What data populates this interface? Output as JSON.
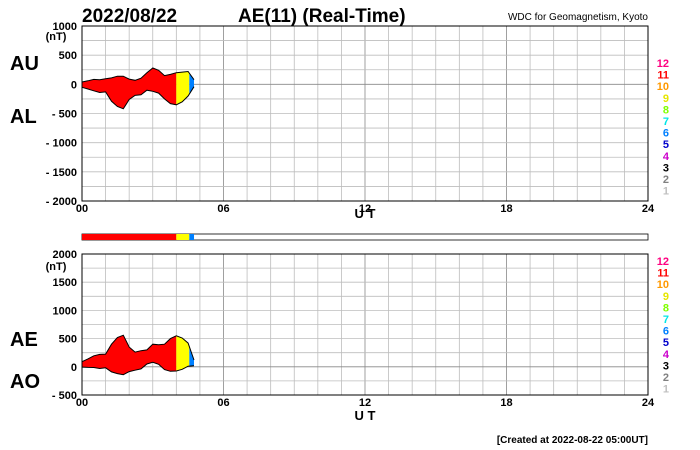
{
  "header": {
    "date": "2022/08/22",
    "title": "AE(11) (Real-Time)",
    "source": "WDC for Geomagnetism, Kyoto"
  },
  "footer": {
    "created": "[Created at 2022-08-22 05:00UT]"
  },
  "station_scale": {
    "labels": [
      "12",
      "11",
      "10",
      "9",
      "8",
      "7",
      "6",
      "5",
      "4",
      "3",
      "2",
      "1"
    ],
    "colors": [
      "#ff0080",
      "#ff0000",
      "#ff9900",
      "#e6e600",
      "#80ff00",
      "#00e6e6",
      "#0080ff",
      "#0000cc",
      "#cc00cc",
      "#000000",
      "#808080",
      "#c0c0c0"
    ]
  },
  "station_bar": {
    "segments": [
      {
        "from": 0.0,
        "to": 4.0,
        "color": "#ff0000"
      },
      {
        "from": 4.0,
        "to": 4.55,
        "color": "#ffff00"
      },
      {
        "from": 4.55,
        "to": 4.75,
        "color": "#0080ff"
      }
    ],
    "extent": [
      0,
      24
    ]
  },
  "chart_data": [
    {
      "type": "area",
      "panel": "au-al",
      "series_labels": [
        "AU",
        "AL"
      ],
      "unit_label": "(nT)",
      "xlabel": "U T",
      "xlim": [
        0,
        24
      ],
      "x_ticks": [
        "00",
        "06",
        "12",
        "18",
        "24"
      ],
      "ylim": [
        -2000,
        1000
      ],
      "y_ticks": [
        "1000",
        "500",
        "0",
        "- 500",
        "- 1000",
        "- 1500",
        "- 2000"
      ],
      "grid": true,
      "x": [
        0.0,
        0.25,
        0.5,
        0.75,
        1.0,
        1.25,
        1.5,
        1.75,
        2.0,
        2.25,
        2.5,
        2.75,
        3.0,
        3.25,
        3.5,
        3.75,
        4.0,
        4.25,
        4.5,
        4.75
      ],
      "AU": [
        40,
        60,
        85,
        80,
        95,
        110,
        140,
        140,
        90,
        70,
        105,
        200,
        280,
        240,
        150,
        170,
        200,
        210,
        220,
        80
      ],
      "AL": [
        -50,
        -80,
        -110,
        -140,
        -130,
        -290,
        -380,
        -420,
        -260,
        -190,
        -180,
        -100,
        -120,
        -150,
        -250,
        -330,
        -350,
        -300,
        -200,
        -40
      ],
      "station_colors": [
        {
          "from": 0.0,
          "to": 4.0,
          "color": "#ff0000"
        },
        {
          "from": 4.0,
          "to": 4.55,
          "color": "#ffff00"
        },
        {
          "from": 4.55,
          "to": 4.75,
          "color": "#0080ff"
        }
      ]
    },
    {
      "type": "area",
      "panel": "ae-ao",
      "series_labels": [
        "AE",
        "AO"
      ],
      "unit_label": "(nT)",
      "xlabel": "U T",
      "xlim": [
        0,
        24
      ],
      "x_ticks": [
        "00",
        "06",
        "12",
        "18",
        "24"
      ],
      "ylim": [
        -500,
        2000
      ],
      "y_ticks": [
        "2000",
        "1500",
        "1000",
        "500",
        "0",
        "- 500"
      ],
      "grid": true,
      "x": [
        0.0,
        0.25,
        0.5,
        0.75,
        1.0,
        1.25,
        1.5,
        1.75,
        2.0,
        2.25,
        2.5,
        2.75,
        3.0,
        3.25,
        3.5,
        3.75,
        4.0,
        4.25,
        4.5,
        4.75
      ],
      "AE": [
        90,
        140,
        195,
        220,
        225,
        400,
        520,
        560,
        350,
        260,
        285,
        300,
        400,
        390,
        400,
        500,
        550,
        510,
        420,
        120
      ],
      "AO": [
        -5,
        -10,
        -12,
        -30,
        -18,
        -90,
        -120,
        -140,
        -85,
        -60,
        -38,
        50,
        80,
        45,
        -50,
        -80,
        -75,
        -45,
        10,
        20
      ],
      "station_colors": [
        {
          "from": 0.0,
          "to": 4.0,
          "color": "#ff0000"
        },
        {
          "from": 4.0,
          "to": 4.55,
          "color": "#ffff00"
        },
        {
          "from": 4.55,
          "to": 4.75,
          "color": "#0080ff"
        }
      ]
    }
  ]
}
